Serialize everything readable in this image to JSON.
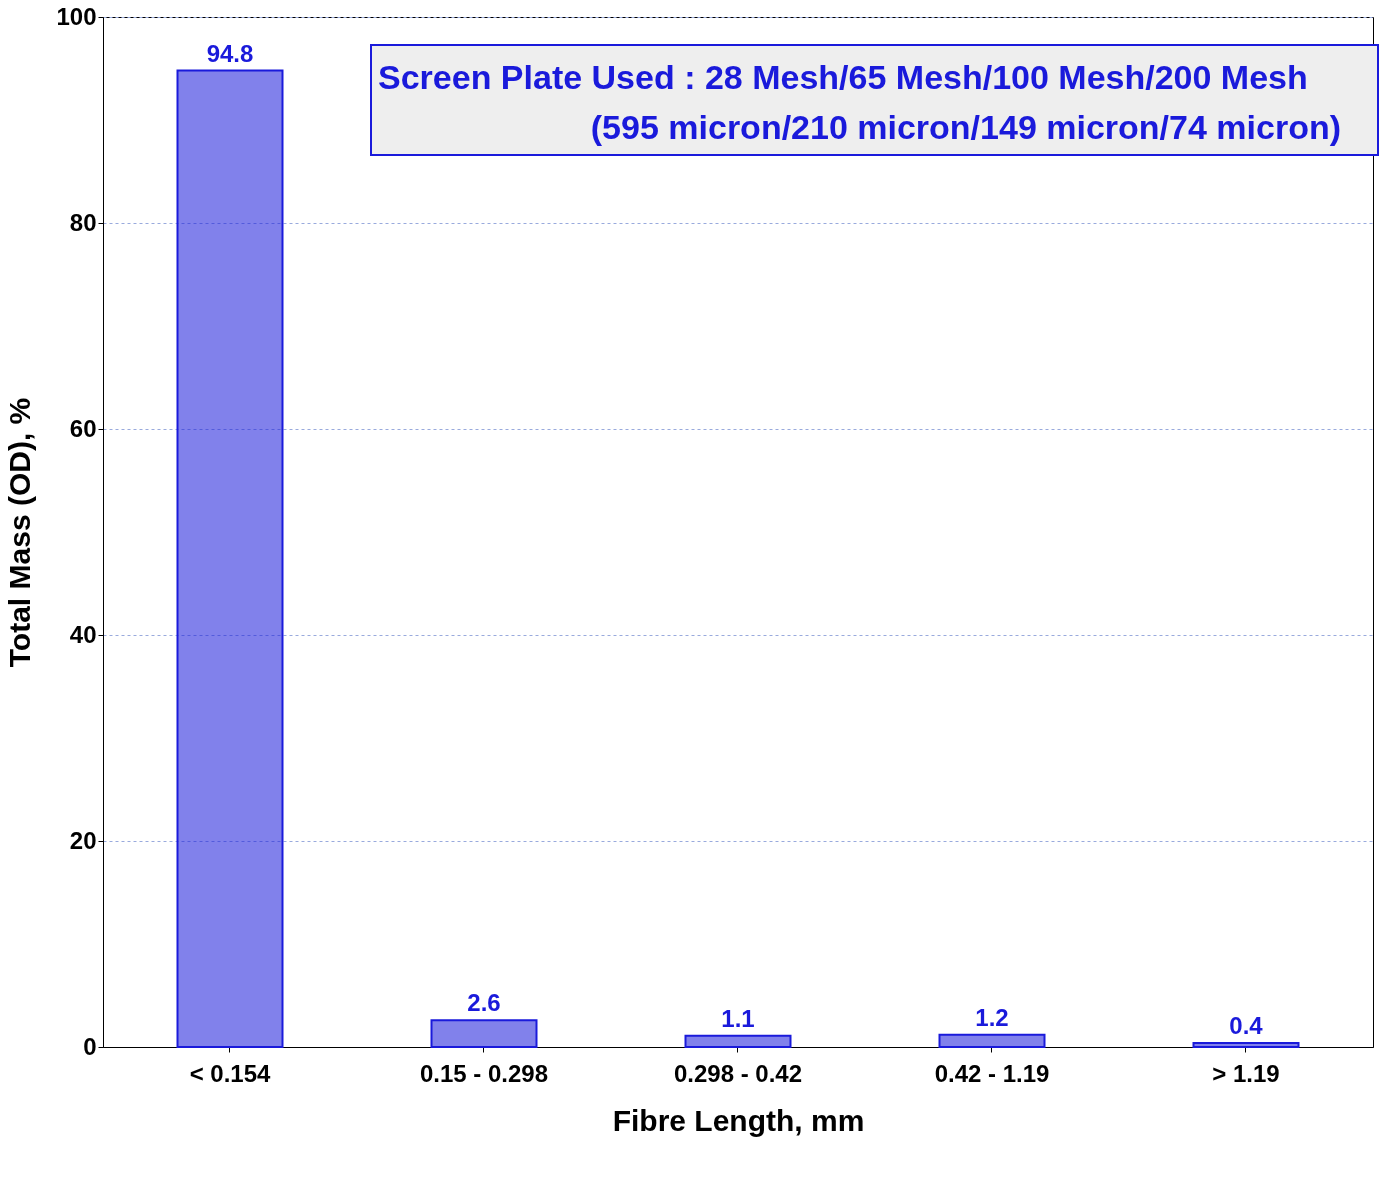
{
  "chart_data": {
    "type": "bar",
    "xlabel": "Fibre Length, mm",
    "ylabel": "Total Mass (OD), %",
    "categories": [
      "< 0.154",
      "0.15 - 0.298",
      "0.298 - 0.42",
      "0.42 - 1.19",
      "> 1.19"
    ],
    "values": [
      94.8,
      2.6,
      1.1,
      1.2,
      0.4
    ],
    "color": "#1a1adb",
    "ylim": [
      0,
      100
    ],
    "yticks": [
      0,
      20,
      40,
      60,
      80,
      100
    ],
    "grid": "y",
    "data_labels": true,
    "annotations": [
      "Screen Plate Used : 28 Mesh/65 Mesh/100 Mesh/200 Mesh",
      "(595 micron/210 micron/149 micron/74 micron)"
    ]
  }
}
